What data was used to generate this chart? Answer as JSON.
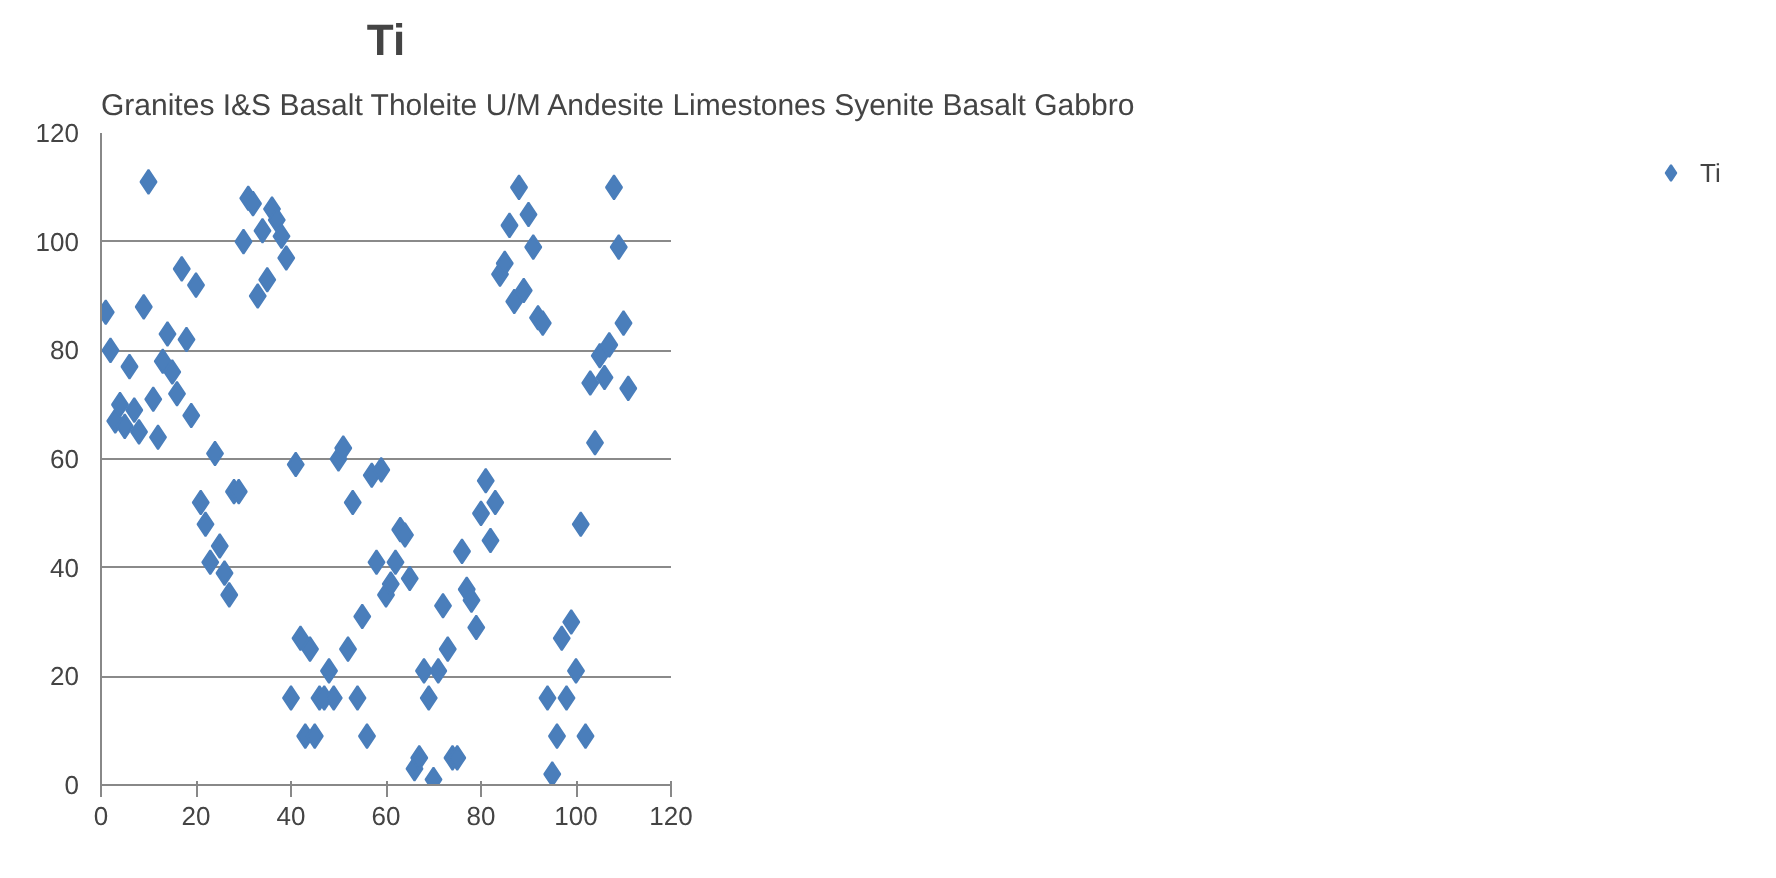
{
  "chart_data": {
    "type": "scatter",
    "title": "Ti",
    "annotations": [
      "Granites I&S   Basalt Tholeite U/M Andesite  Limestones Syenite Basalt Gabbro"
    ],
    "x": [
      1,
      2,
      3,
      4,
      5,
      6,
      7,
      8,
      9,
      10,
      11,
      12,
      13,
      14,
      15,
      16,
      17,
      18,
      19,
      20,
      21,
      22,
      23,
      24,
      25,
      26,
      27,
      28,
      29,
      30,
      31,
      32,
      33,
      34,
      35,
      36,
      37,
      38,
      39,
      40,
      41,
      42,
      43,
      44,
      45,
      46,
      47,
      48,
      49,
      50,
      51,
      52,
      53,
      54,
      55,
      56,
      57,
      58,
      59,
      60,
      61,
      62,
      63,
      64,
      65,
      66,
      67,
      68,
      69,
      70,
      71,
      72,
      73,
      74,
      75,
      76,
      77,
      78,
      79,
      80,
      81,
      82,
      83,
      84,
      85,
      86,
      87,
      88,
      89,
      90,
      91,
      92,
      93,
      94,
      95,
      96,
      97,
      98,
      99,
      100,
      101,
      102,
      103,
      104,
      105,
      106,
      107,
      108,
      109,
      110,
      111
    ],
    "series": [
      {
        "name": "Ti",
        "color": "#4a7ebb",
        "values": [
          87,
          80,
          67,
          70,
          66,
          77,
          69,
          65,
          88,
          111,
          71,
          64,
          78,
          83,
          76,
          72,
          95,
          82,
          68,
          92,
          52,
          48,
          41,
          61,
          44,
          39,
          35,
          54,
          54,
          100,
          108,
          107,
          90,
          102,
          93,
          106,
          104,
          101,
          97,
          16,
          59,
          27,
          9,
          25,
          9,
          16,
          16,
          21,
          16,
          60,
          62,
          25,
          52,
          16,
          31,
          9,
          57,
          41,
          58,
          35,
          37,
          41,
          47,
          46,
          38,
          3,
          5,
          21,
          16,
          1,
          21,
          33,
          25,
          5,
          5,
          43,
          36,
          34,
          29,
          50,
          56,
          45,
          52,
          94,
          96,
          103,
          89,
          110,
          91,
          105,
          99,
          86,
          85,
          16,
          2,
          9,
          27,
          16,
          30,
          21,
          48,
          9,
          74,
          63,
          79,
          75,
          81,
          110,
          99,
          85,
          73
        ]
      }
    ],
    "xlim": [
      0,
      120
    ],
    "xticks": [
      0,
      20,
      40,
      60,
      80,
      100,
      120
    ],
    "ylim": [
      0,
      120
    ],
    "yticks": [
      0,
      20,
      40,
      60,
      80,
      100,
      120
    ],
    "grid": "y",
    "legend": "right",
    "marker": "diamond"
  }
}
